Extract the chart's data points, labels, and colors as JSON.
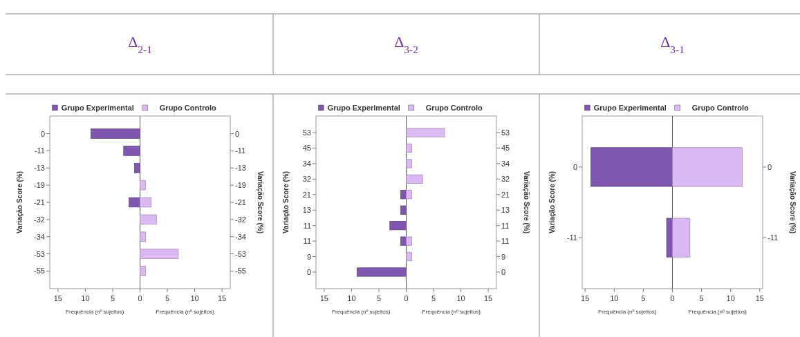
{
  "chart_data": [
    {
      "type": "bar",
      "orientation": "horizontal",
      "stacked": true,
      "legend": "top",
      "title": "Δ$_{2-1}$",
      "xlabel": "Frequência (nº sujeitos)",
      "ylabel": "Variação Score (%)",
      "y2label": "Variação Score (%)",
      "categories": [
        "0",
        "-11",
        "-13",
        "-19",
        "-21",
        "-32",
        "-34",
        "-53",
        "-55"
      ],
      "series": [
        {
          "name": "Grupo Experimental",
          "color": "#7f57b0",
          "values": [
            -9,
            -3,
            -1,
            null,
            -2,
            null,
            null,
            null,
            null
          ]
        },
        {
          "name": "Grupo Controlo",
          "color": "#dcb9f2",
          "values": [
            null,
            null,
            null,
            1,
            2,
            3,
            1,
            7,
            1
          ]
        }
      ],
      "xlim": [
        -16.5,
        16.5
      ],
      "xticks": [
        {
          "value": -15,
          "label": "15"
        },
        {
          "value": -10,
          "label": "10"
        },
        {
          "value": -5,
          "label": "5"
        },
        0,
        5,
        10,
        15
      ]
    },
    {
      "type": "bar",
      "orientation": "horizontal",
      "stacked": true,
      "legend": "top",
      "title": "Δ$_{3-2}$",
      "xlabel": "Frequência (nº sujeitos)",
      "ylabel": "Variação Score (%)",
      "y2label": "Variação Score (%)",
      "categories": [
        "53",
        "45",
        "34",
        "32",
        "21",
        "13",
        "11",
        "11",
        "9",
        "0"
      ],
      "series": [
        {
          "name": "Grupo Experimental",
          "color": "#7f57b0",
          "values": [
            null,
            null,
            null,
            null,
            -1,
            -1,
            -3,
            -1,
            null,
            -9
          ]
        },
        {
          "name": "Grupo Controlo",
          "color": "#dcb9f2",
          "values": [
            7,
            1,
            1,
            3,
            1,
            null,
            null,
            1,
            1,
            null
          ]
        }
      ],
      "xlim": [
        -16.5,
        16.5
      ],
      "xticks": [
        {
          "value": -15,
          "label": "15"
        },
        {
          "value": -10,
          "label": "10"
        },
        {
          "value": -5,
          "label": "5"
        },
        0,
        5,
        10,
        15
      ]
    },
    {
      "type": "bar",
      "orientation": "horizontal",
      "stacked": true,
      "legend": "top",
      "title": "Δ$_{3-1}$",
      "xlabel": "Frequência (nº sujeitos)",
      "ylabel": "Variação Score (%)",
      "y2label": "Variação Score (%)",
      "categories": [
        "0",
        "-11"
      ],
      "series": [
        {
          "name": "Grupo Experimental",
          "color": "#7f57b0",
          "values": [
            -14,
            -1
          ]
        },
        {
          "name": "Grupo Controlo",
          "color": "#dcb9f2",
          "values": [
            12,
            3
          ]
        }
      ],
      "xlim": [
        -15.5,
        15.5
      ],
      "xticks": [
        {
          "value": -15,
          "label": "15"
        },
        {
          "value": -10,
          "label": "10"
        },
        {
          "value": -5,
          "label": "5"
        },
        0,
        5,
        10,
        15
      ]
    }
  ]
}
